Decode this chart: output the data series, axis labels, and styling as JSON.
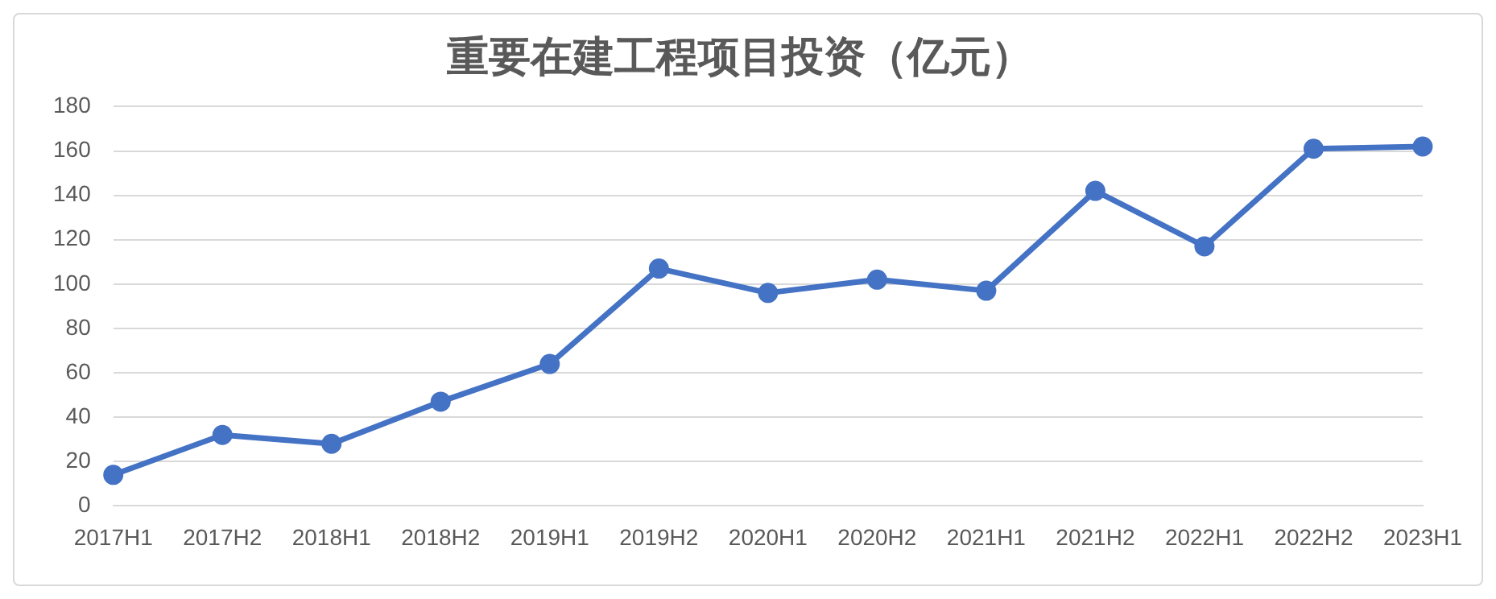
{
  "chart_data": {
    "type": "line",
    "title": "重要在建工程项目投资（亿元）",
    "categories": [
      "2017H1",
      "2017H2",
      "2018H1",
      "2018H2",
      "2019H1",
      "2019H2",
      "2020H1",
      "2020H2",
      "2021H1",
      "2021H2",
      "2022H1",
      "2022H2",
      "2023H1"
    ],
    "series": [
      {
        "color": "#4472c4",
        "values": [
          14,
          32,
          28,
          47,
          64,
          107,
          96,
          102,
          97,
          142,
          117,
          161,
          162
        ]
      }
    ],
    "ylim": [
      0,
      180
    ],
    "yticks": [
      0,
      20,
      40,
      60,
      80,
      100,
      120,
      140,
      160,
      180
    ],
    "grid": "y",
    "legend": false,
    "marker": "circle",
    "line_style": "solid"
  }
}
